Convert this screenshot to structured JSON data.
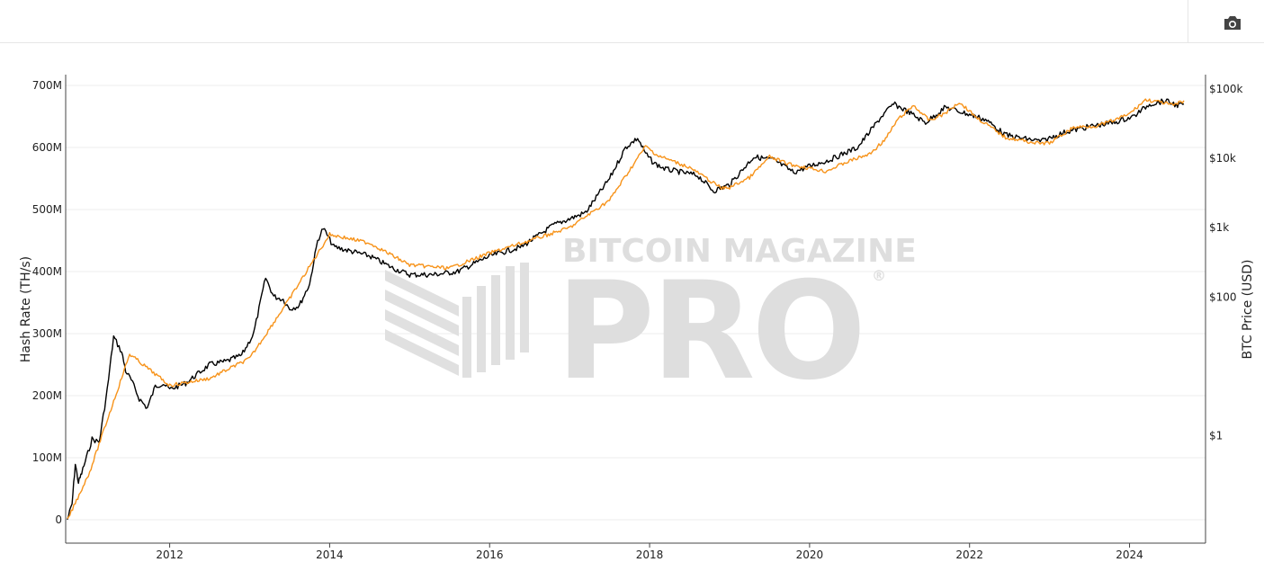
{
  "toolbar": {
    "camera_icon": "camera-icon"
  },
  "watermark": {
    "line1": "BITCOIN MAGAZINE",
    "line2": "PRO",
    "registered": "®"
  },
  "chart_data": {
    "type": "line",
    "title": "",
    "xlabel": "",
    "x_ticks": [
      "2012",
      "2014",
      "2016",
      "2018",
      "2020",
      "2022",
      "2024"
    ],
    "xlim": [
      2010.7,
      2024.95
    ],
    "y_left": {
      "label": "Hash Rate (TH/s)",
      "ticks": [
        "0",
        "100M",
        "200M",
        "300M",
        "400M",
        "500M",
        "600M",
        "700M"
      ],
      "tick_values": [
        0,
        100,
        200,
        300,
        400,
        500,
        600,
        700
      ],
      "range": [
        -38,
        717
      ],
      "unit_note": "values in millions"
    },
    "y_right": {
      "label": "BTC Price (USD)",
      "scale": "log",
      "ticks": [
        "$1",
        "$100",
        "$1k",
        "$10k",
        "$100k"
      ],
      "tick_values": [
        1,
        100,
        1000,
        10000,
        100000
      ]
    },
    "series": [
      {
        "name": "Hash Rate",
        "axis": "left",
        "color": "#000000",
        "x": [
          2010.72,
          2010.78,
          2010.82,
          2010.86,
          2010.9,
          2010.96,
          2011.03,
          2011.12,
          2011.22,
          2011.3,
          2011.4,
          2011.45,
          2011.52,
          2011.62,
          2011.72,
          2011.82,
          2011.92,
          2012.0,
          2012.2,
          2012.5,
          2012.7,
          2012.9,
          2013.05,
          2013.2,
          2013.3,
          2013.42,
          2013.5,
          2013.62,
          2013.75,
          2013.85,
          2013.92,
          2014.05,
          2014.2,
          2014.5,
          2014.8,
          2015.0,
          2015.3,
          2015.6,
          2016.0,
          2016.4,
          2016.8,
          2017.2,
          2017.5,
          2017.7,
          2017.85,
          2017.95,
          2018.05,
          2018.2,
          2018.4,
          2018.6,
          2018.8,
          2019.0,
          2019.3,
          2019.55,
          2019.8,
          2020.0,
          2020.25,
          2020.6,
          2020.9,
          2021.05,
          2021.2,
          2021.45,
          2021.7,
          2021.95,
          2022.2,
          2022.45,
          2022.65,
          2022.9,
          2023.2,
          2023.55,
          2023.8,
          2024.05,
          2024.25,
          2024.45,
          2024.6,
          2024.68
        ],
        "values": [
          0,
          25,
          90,
          60,
          75,
          100,
          130,
          125,
          210,
          295,
          270,
          240,
          225,
          195,
          180,
          215,
          220,
          210,
          220,
          250,
          255,
          265,
          300,
          390,
          360,
          355,
          340,
          345,
          380,
          450,
          470,
          440,
          435,
          425,
          405,
          395,
          395,
          400,
          425,
          440,
          475,
          495,
          550,
          600,
          615,
          590,
          575,
          565,
          560,
          555,
          530,
          540,
          585,
          580,
          560,
          570,
          580,
          600,
          650,
          670,
          660,
          640,
          665,
          655,
          645,
          620,
          615,
          610,
          625,
          635,
          640,
          650,
          670,
          675,
          668,
          670
        ]
      },
      {
        "name": "BTC Price",
        "axis": "right",
        "color": "#f7931a",
        "x": [
          2010.72,
          2011.0,
          2011.5,
          2012.0,
          2012.5,
          2013.0,
          2013.5,
          2014.0,
          2014.5,
          2015.0,
          2015.5,
          2016.0,
          2016.5,
          2017.0,
          2017.5,
          2017.95,
          2018.1,
          2018.5,
          2018.9,
          2019.0,
          2019.25,
          2019.5,
          2019.75,
          2020.0,
          2020.2,
          2020.5,
          2020.75,
          2020.95,
          2021.1,
          2021.3,
          2021.5,
          2021.7,
          2021.87,
          2022.1,
          2022.45,
          2022.85,
          2023.0,
          2023.3,
          2023.6,
          2023.85,
          2024.0,
          2024.2,
          2024.4,
          2024.55,
          2024.68
        ],
        "values": [
          0.06,
          0.3,
          15,
          5.3,
          6.7,
          13,
          95,
          800,
          600,
          290,
          260,
          430,
          650,
          1000,
          2500,
          15000,
          11000,
          7400,
          3700,
          3800,
          5300,
          10500,
          8200,
          7200,
          6500,
          9200,
          11500,
          19000,
          36000,
          58000,
          35000,
          45000,
          65000,
          38000,
          20000,
          16500,
          16600,
          28000,
          29500,
          37000,
          44000,
          70000,
          64000,
          58000,
          68000
        ]
      }
    ],
    "grid": true,
    "legend": "none"
  }
}
